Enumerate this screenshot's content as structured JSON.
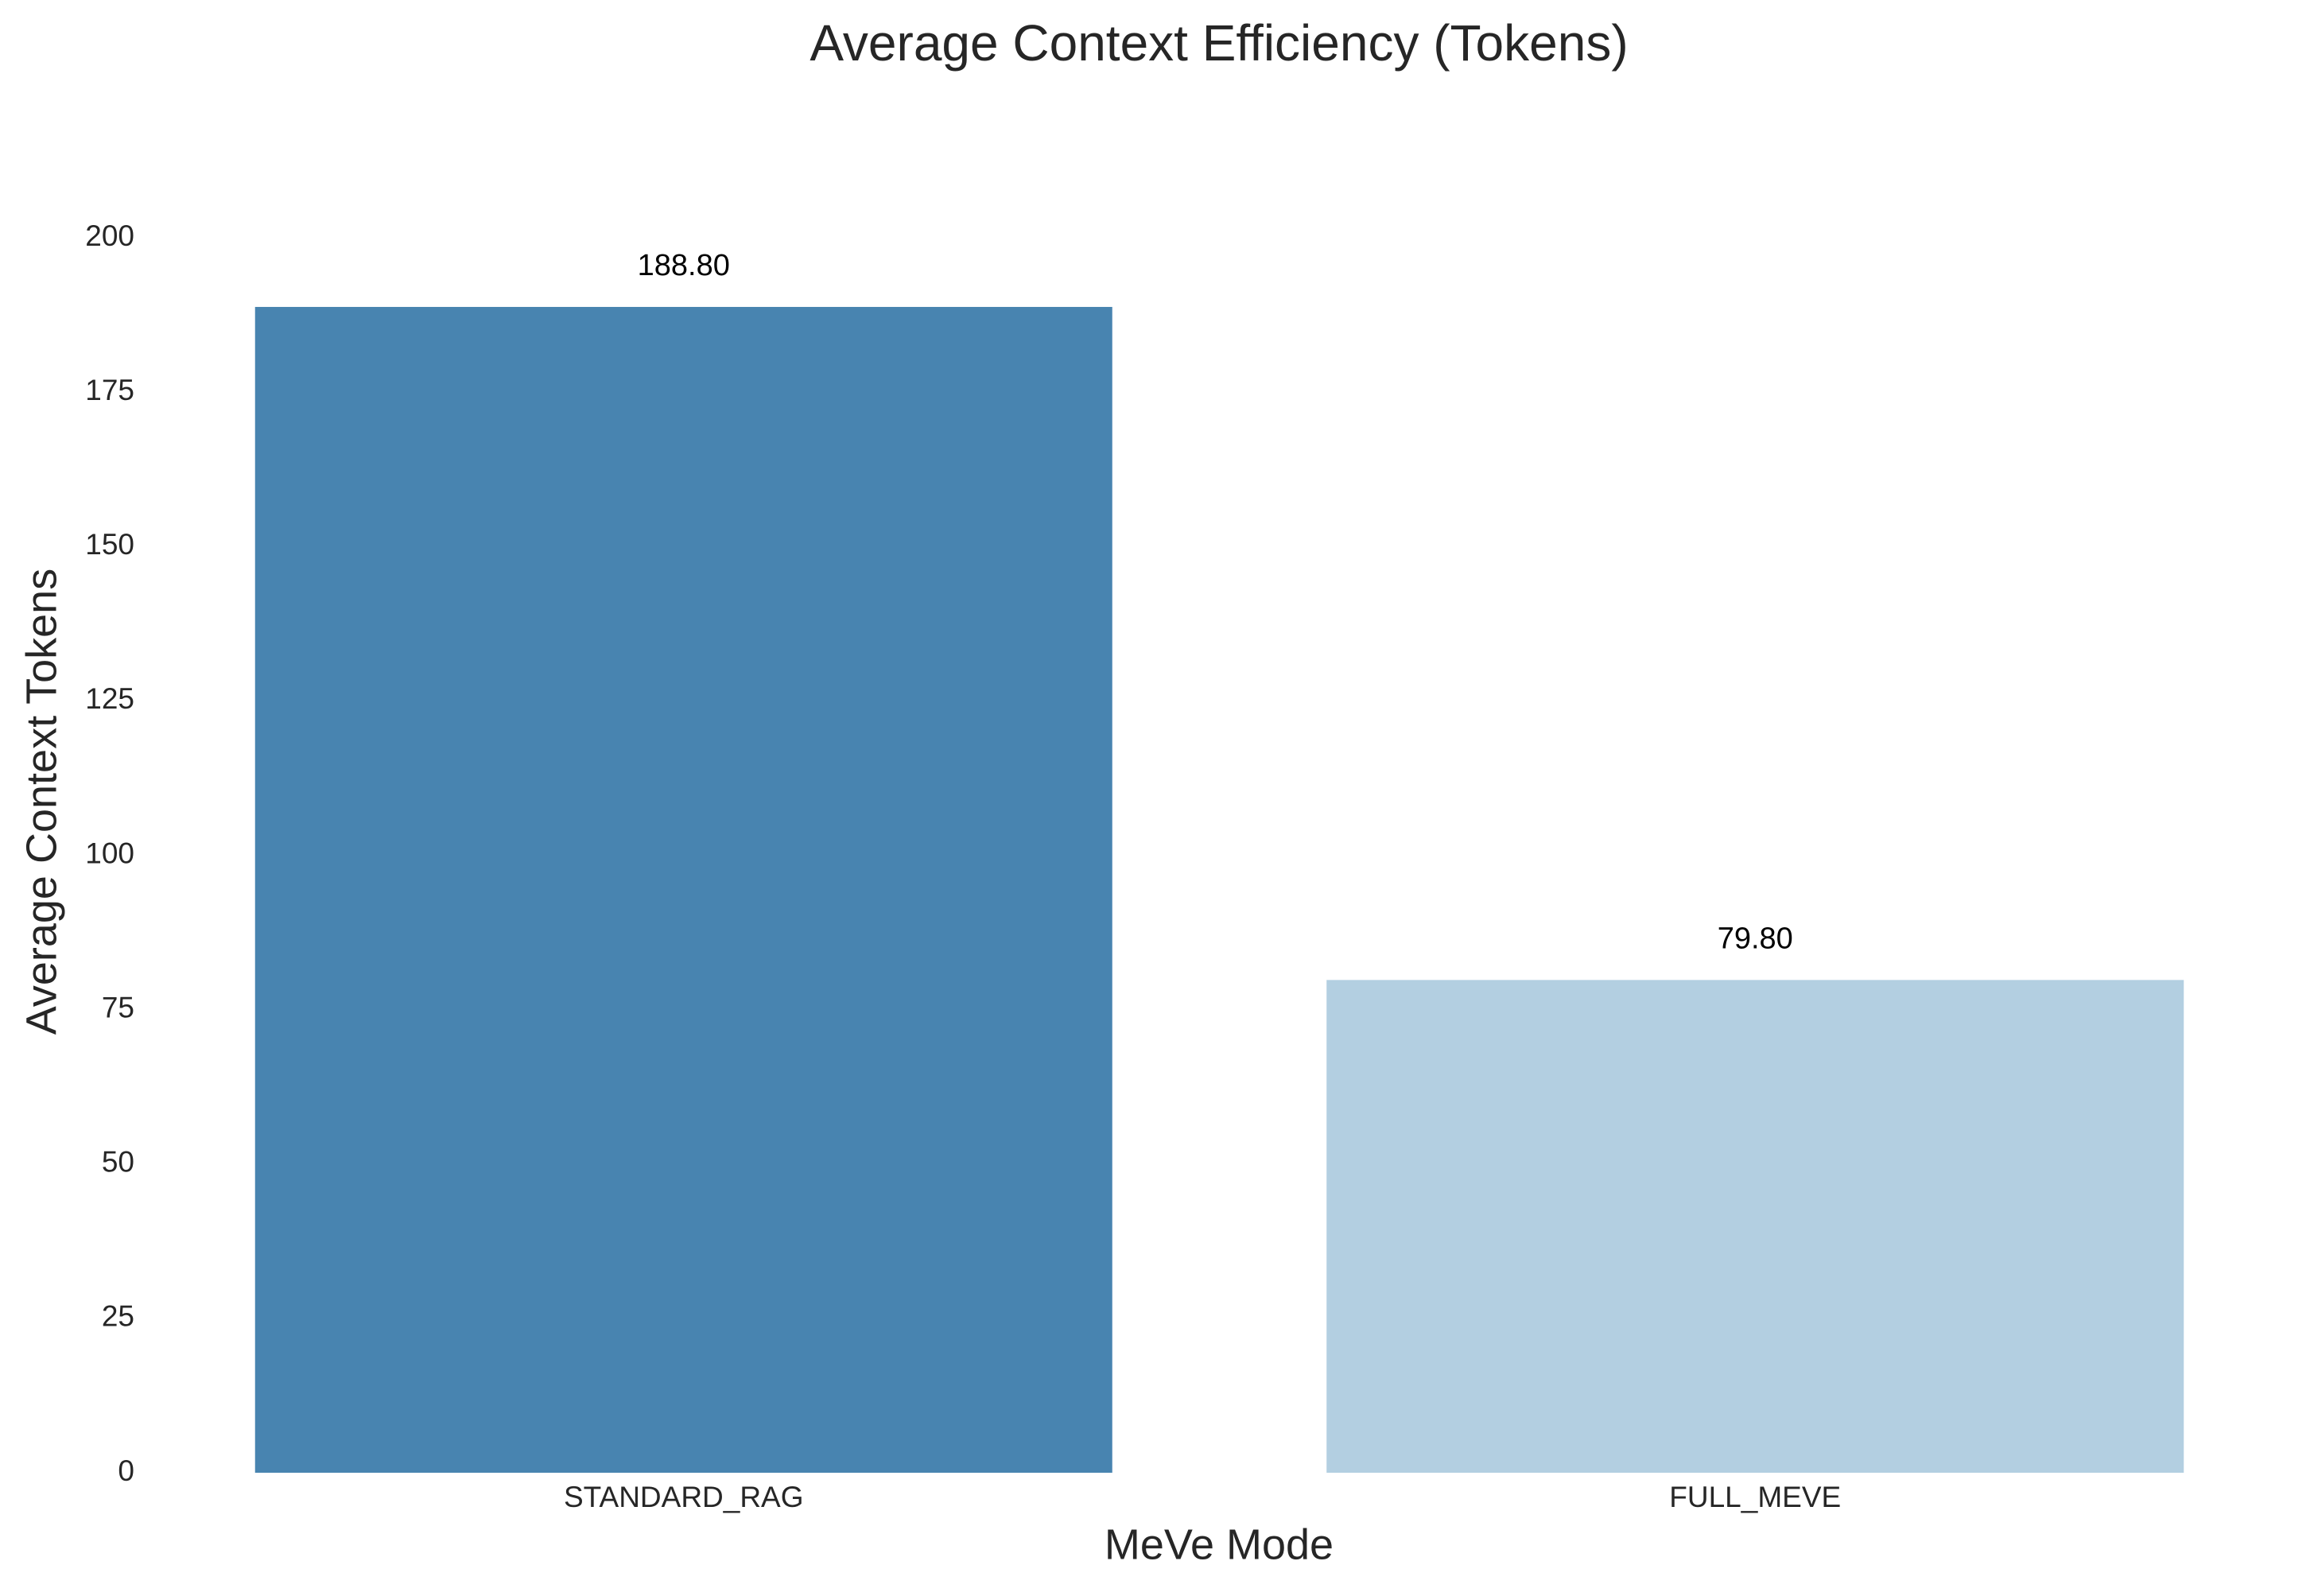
{
  "chart_data": {
    "type": "bar",
    "title": "Average Context Efficiency (Tokens)",
    "x_label": "MeVe Mode",
    "y_label": "Average Context Tokens",
    "categories": [
      "STANDARD_RAG",
      "FULL_MEVE"
    ],
    "values": [
      188.8,
      79.8
    ],
    "value_labels": [
      "188.80",
      "79.80"
    ],
    "colors": [
      "#4884b0",
      "#b3cfe1"
    ],
    "ylim": [
      0,
      200
    ],
    "yticks": [
      0,
      25,
      50,
      75,
      100,
      125,
      150,
      175,
      200
    ],
    "grid": false
  }
}
